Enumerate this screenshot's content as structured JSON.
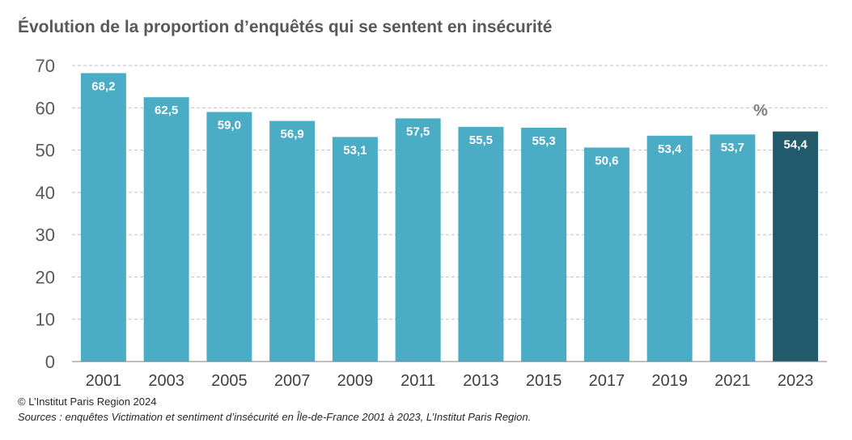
{
  "title": "Évolution de la proportion d’enquêtés qui se sentent en insécurité",
  "copyright": "© L’Institut Paris Region 2024",
  "sources": "Sources : enquêtes Victimation et sentiment d’insécurité en Île-de-France 2001 à 2023, L’Institut Paris Region.",
  "colors": {
    "bar": "#4bacc6",
    "highlight": "#215a6b",
    "grid": "#bfbfbf",
    "axis": "#7f7f7f"
  },
  "chart_data": {
    "type": "bar",
    "categories": [
      "2001",
      "2003",
      "2005",
      "2007",
      "2009",
      "2011",
      "2013",
      "2015",
      "2017",
      "2019",
      "2021",
      "2023"
    ],
    "values": [
      68.2,
      62.5,
      59.0,
      56.9,
      53.1,
      57.5,
      55.5,
      55.3,
      50.6,
      53.4,
      53.7,
      54.4
    ],
    "data_labels": [
      "68,2",
      "62,5",
      "59,0",
      "56,9",
      "53,1",
      "57,5",
      "55,5",
      "55,3",
      "50,6",
      "53,4",
      "53,7",
      "54,4"
    ],
    "highlight_index": 11,
    "unit_label": "%",
    "ylim": [
      0,
      70
    ],
    "yticks": [
      0,
      10,
      20,
      30,
      40,
      50,
      60,
      70
    ],
    "grid": "dashed horizontal",
    "legend": "none"
  }
}
